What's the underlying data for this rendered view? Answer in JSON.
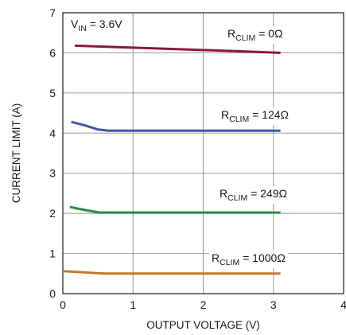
{
  "chart_data": {
    "type": "line",
    "title": "",
    "xlabel": "OUTPUT VOLTAGE (V)",
    "ylabel": "CURRENT LIMIT (A)",
    "xlim": [
      0,
      4
    ],
    "ylim": [
      0,
      7
    ],
    "x_ticks": [
      "0",
      "1",
      "2",
      "3",
      "4"
    ],
    "y_ticks": [
      "0",
      "1",
      "2",
      "3",
      "4",
      "5",
      "6",
      "7"
    ],
    "grid": true,
    "legend": "none",
    "condition": {
      "main": "V",
      "sub": "IN",
      "rest": " = 3.6V"
    },
    "series": [
      {
        "label": {
          "main": "R",
          "sub": "CLIM",
          "rest": " = 0Ω"
        },
        "color": "#8b1a3a",
        "x": [
          0.17,
          0.5,
          1.0,
          1.5,
          2.0,
          2.5,
          3.1
        ],
        "y": [
          6.18,
          6.16,
          6.13,
          6.1,
          6.07,
          6.04,
          6.0
        ]
      },
      {
        "label": {
          "main": "R",
          "sub": "CLIM",
          "rest": " = 124Ω"
        },
        "color": "#3f56a6",
        "x": [
          0.12,
          0.3,
          0.5,
          0.65,
          1.0,
          2.0,
          3.1
        ],
        "y": [
          4.28,
          4.2,
          4.09,
          4.06,
          4.06,
          4.06,
          4.06
        ]
      },
      {
        "label": {
          "main": "R",
          "sub": "CLIM",
          "rest": " = 249Ω"
        },
        "color": "#2e8b4a",
        "x": [
          0.1,
          0.3,
          0.52,
          1.0,
          2.0,
          3.1
        ],
        "y": [
          2.16,
          2.09,
          2.02,
          2.02,
          2.02,
          2.02
        ]
      },
      {
        "label": {
          "main": "R",
          "sub": "CLIM",
          "rest": " = 1000Ω"
        },
        "color": "#c07a30",
        "x": [
          0.0,
          0.3,
          0.6,
          1.0,
          2.0,
          3.1
        ],
        "y": [
          0.56,
          0.53,
          0.5,
          0.5,
          0.5,
          0.5
        ]
      }
    ]
  }
}
